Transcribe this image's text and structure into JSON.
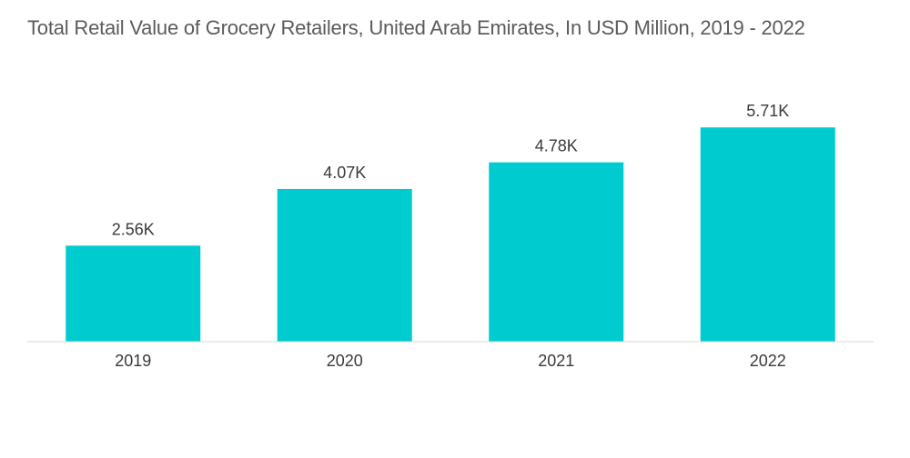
{
  "chart_data": {
    "type": "bar",
    "title": "Total Retail Value of Grocery Retailers, United Arab Emirates, In USD Million, 2019 - 2022",
    "categories": [
      "2019",
      "2020",
      "2021",
      "2022"
    ],
    "values": [
      2560,
      4070,
      4780,
      5710
    ],
    "value_labels": [
      "2.56K",
      "4.07K",
      "4.78K",
      "5.71K"
    ],
    "ylim": [
      0,
      6200
    ],
    "grid": false,
    "bar_color": "#00ccd0",
    "axis_color": "#d9d9d9"
  }
}
